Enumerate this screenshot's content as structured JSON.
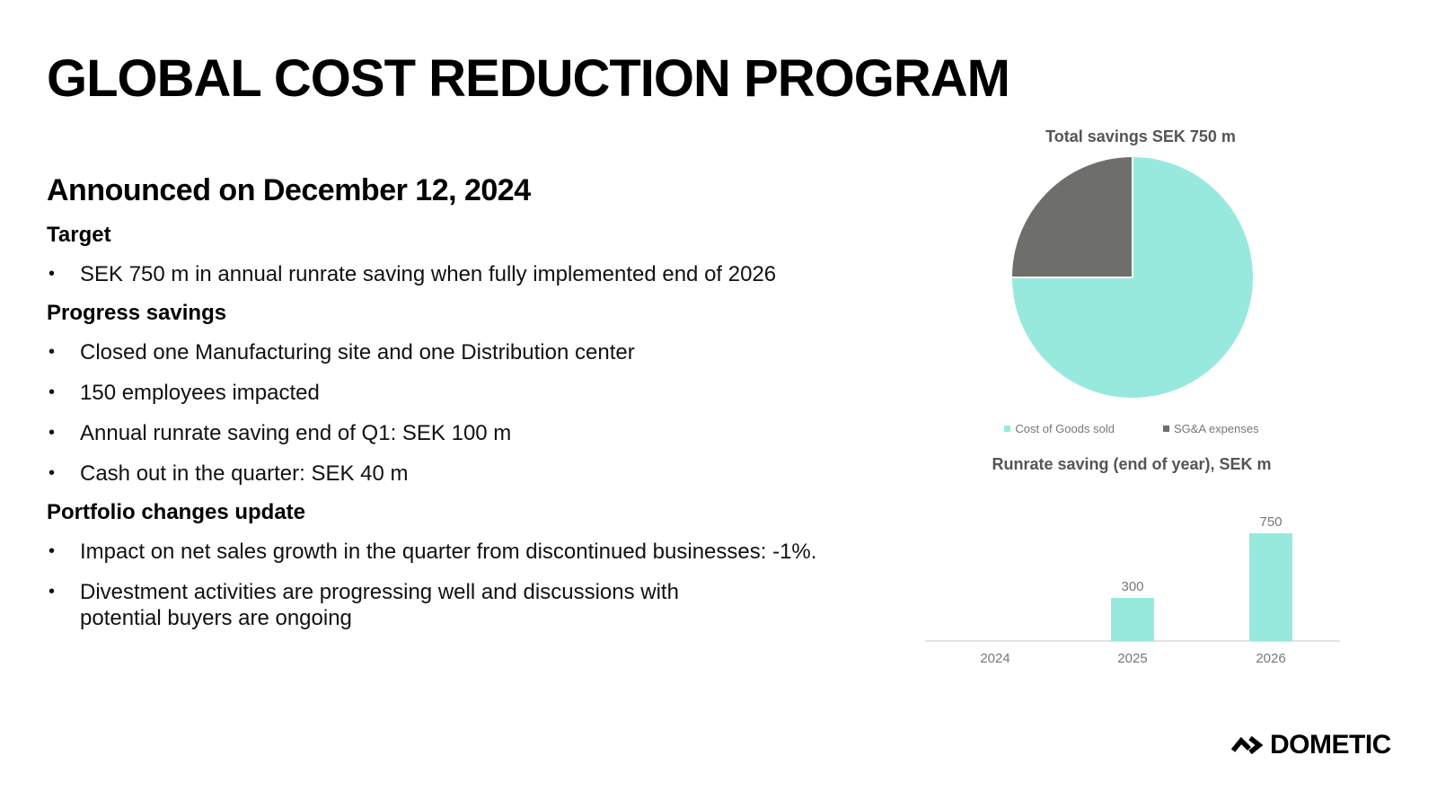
{
  "slide": {
    "title": "GLOBAL COST REDUCTION PROGRAM",
    "subtitle": "Announced on December 12, 2024",
    "sections": [
      {
        "heading": "Target",
        "bullets": [
          "SEK 750 m in annual runrate saving when fully implemented end of 2026"
        ]
      },
      {
        "heading": "Progress savings",
        "bullets": [
          "Closed one Manufacturing site and one Distribution center",
          "150 employees impacted",
          "Annual runrate saving end of Q1: SEK 100 m",
          "Cash out in the quarter: SEK 40 m"
        ]
      },
      {
        "heading": "Portfolio changes update",
        "bullets": [
          "Impact on net sales growth in the quarter from discontinued businesses: -1%.",
          "Divestment activities are progressing well and discussions with potential buyers are ongoing"
        ]
      }
    ]
  },
  "logo": {
    "text": "DOMETIC",
    "icon": "dometic-chevron-icon"
  },
  "colors": {
    "teal": "#98e9dd",
    "gray": "#6e6f6b",
    "axis": "#d9d9d9",
    "label": "#777777"
  },
  "chart_data": [
    {
      "type": "pie",
      "title": "Total savings SEK 750 m",
      "categories": [
        "Cost of Goods sold",
        "SG&A expenses"
      ],
      "values": [
        75,
        25
      ],
      "legend": "bottom"
    },
    {
      "type": "bar",
      "title": "Runrate saving (end of year), SEK m",
      "categories": [
        "2024",
        "2025",
        "2026"
      ],
      "values": [
        null,
        300,
        750
      ],
      "data_labels": [
        "",
        "300",
        "750"
      ],
      "ylim": [
        0,
        750
      ],
      "grid": false
    }
  ]
}
